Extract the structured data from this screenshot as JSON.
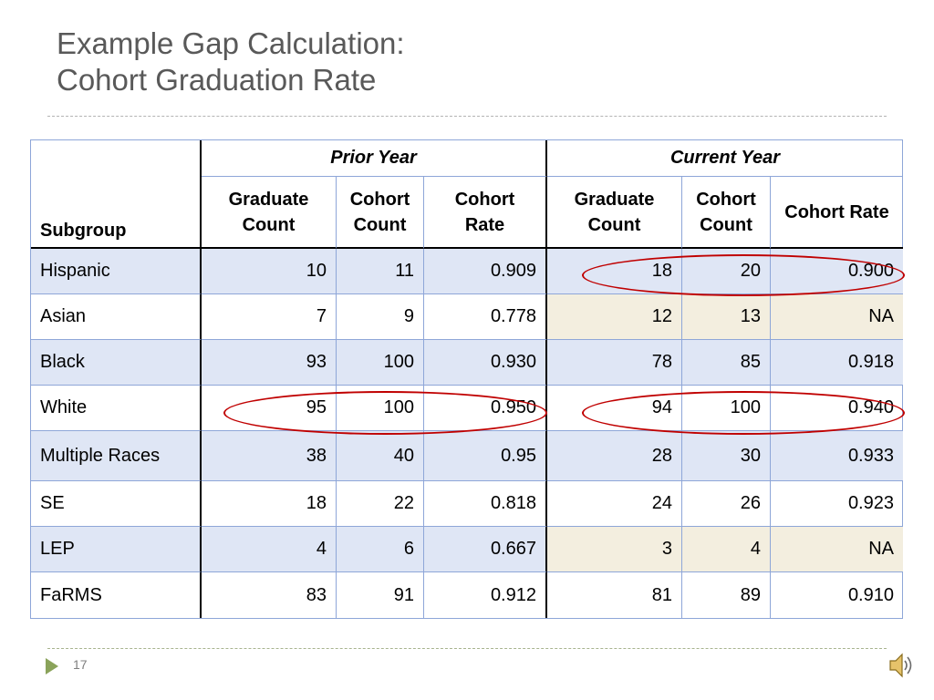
{
  "slide": {
    "title_line1": "Example Gap Calculation:",
    "title_line2": "Cohort Graduation Rate",
    "page_number": "17"
  },
  "table": {
    "subgroup_header": "Subgroup",
    "prior_year_header": "Prior Year",
    "current_year_header": "Current Year",
    "col_graduate_count": "Graduate Count",
    "col_cohort_count": "Cohort Count",
    "col_cohort_rate": "Cohort Rate",
    "rows": [
      {
        "subgroup": "Hispanic",
        "p_grad": "10",
        "p_cohort": "11",
        "p_rate": "0.909",
        "c_grad": "18",
        "c_cohort": "20",
        "c_rate": "0.900"
      },
      {
        "subgroup": "Asian",
        "p_grad": "7",
        "p_cohort": "9",
        "p_rate": "0.778",
        "c_grad": "12",
        "c_cohort": "13",
        "c_rate": "NA"
      },
      {
        "subgroup": "Black",
        "p_grad": "93",
        "p_cohort": "100",
        "p_rate": "0.930",
        "c_grad": "78",
        "c_cohort": "85",
        "c_rate": "0.918"
      },
      {
        "subgroup": "White",
        "p_grad": "95",
        "p_cohort": "100",
        "p_rate": "0.950",
        "c_grad": "94",
        "c_cohort": "100",
        "c_rate": "0.940"
      },
      {
        "subgroup": "Multiple Races",
        "p_grad": "38",
        "p_cohort": "40",
        "p_rate": "0.95",
        "c_grad": "28",
        "c_cohort": "30",
        "c_rate": "0.933"
      },
      {
        "subgroup": "SE",
        "p_grad": "18",
        "p_cohort": "22",
        "p_rate": "0.818",
        "c_grad": "24",
        "c_cohort": "26",
        "c_rate": "0.923"
      },
      {
        "subgroup": "LEP",
        "p_grad": "4",
        "p_cohort": "6",
        "p_rate": "0.667",
        "c_grad": "3",
        "c_cohort": "4",
        "c_rate": "NA"
      },
      {
        "subgroup": "FaRMS",
        "p_grad": "83",
        "p_cohort": "91",
        "p_rate": "0.912",
        "c_grad": "81",
        "c_cohort": "89",
        "c_rate": "0.910"
      }
    ]
  },
  "colors": {
    "title": "#595959",
    "row_shade": "#dfe6f5",
    "small_n_shade": "#f3eedf",
    "highlight_ellipse": "#c00000",
    "nav_arrow": "#8aa35a"
  },
  "icons": {
    "nav": "play-arrow-icon",
    "audio": "speaker-icon"
  }
}
